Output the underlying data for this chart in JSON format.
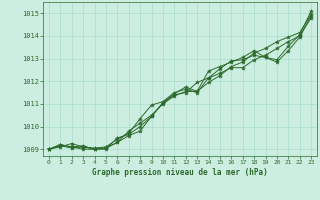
{
  "xlabel": "Graphe pression niveau de la mer (hPa)",
  "xlim": [
    -0.5,
    23.5
  ],
  "ylim": [
    1008.7,
    1015.5
  ],
  "yticks": [
    1009,
    1010,
    1011,
    1012,
    1013,
    1014,
    1015
  ],
  "xticks": [
    0,
    1,
    2,
    3,
    4,
    5,
    6,
    7,
    8,
    9,
    10,
    11,
    12,
    13,
    14,
    15,
    16,
    17,
    18,
    19,
    20,
    21,
    22,
    23
  ],
  "background_color": "#cceee0",
  "grid_color": "#aaddcc",
  "line_color": "#2d6a2d",
  "series": [
    [
      1009.0,
      1009.2,
      1009.1,
      1009.15,
      1009.0,
      1009.05,
      1009.3,
      1009.6,
      1009.8,
      1010.45,
      1011.05,
      1011.45,
      1011.75,
      1011.55,
      1012.45,
      1012.65,
      1012.85,
      1013.05,
      1013.35,
      1013.05,
      1012.95,
      1013.55,
      1014.05,
      1015.1
    ],
    [
      1009.0,
      1009.1,
      1009.25,
      1009.1,
      1009.05,
      1009.1,
      1009.45,
      1009.7,
      1010.35,
      1010.95,
      1011.1,
      1011.5,
      1011.65,
      1011.5,
      1012.15,
      1012.55,
      1012.9,
      1012.95,
      1013.15,
      1013.05,
      1012.85,
      1013.35,
      1013.95,
      1014.9
    ],
    [
      1009.0,
      1009.15,
      1009.05,
      1009.1,
      1009.0,
      1009.0,
      1009.5,
      1009.65,
      1010.0,
      1010.45,
      1011.05,
      1011.4,
      1011.5,
      1011.95,
      1012.15,
      1012.35,
      1012.6,
      1012.6,
      1012.95,
      1013.15,
      1013.45,
      1013.75,
      1014.0,
      1014.8
    ],
    [
      1009.0,
      1009.2,
      1009.1,
      1009.0,
      1009.0,
      1009.05,
      1009.3,
      1009.8,
      1010.15,
      1010.5,
      1011.0,
      1011.35,
      1011.55,
      1011.55,
      1011.95,
      1012.25,
      1012.65,
      1012.85,
      1013.25,
      1013.45,
      1013.75,
      1013.95,
      1014.15,
      1014.95
    ]
  ]
}
